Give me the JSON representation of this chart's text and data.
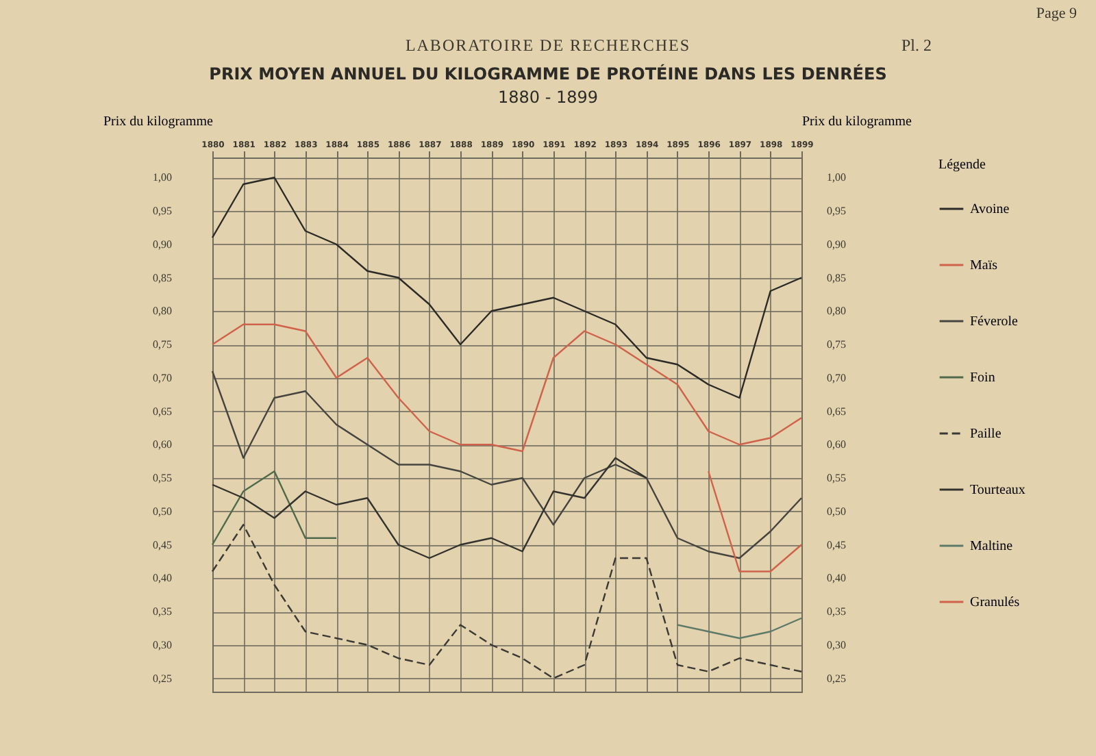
{
  "chart_data": {
    "type": "line",
    "title": "PRIX MOYEN ANNUEL DU KILOGRAMME DE PROTÉINE DANS LES DENRÉES",
    "subtitle": "1880 - 1899",
    "annotations": [
      "Page 9",
      "LABORATOIRE DE RECHERCHES",
      "Pl. 2"
    ],
    "ylabel": "Prix du kilogramme",
    "y2label": "Prix du kilogramme",
    "legend_title": "Légende",
    "categories": [
      "1880",
      "1881",
      "1882",
      "1883",
      "1884",
      "1885",
      "1886",
      "1887",
      "1888",
      "1889",
      "1890",
      "1891",
      "1892",
      "1893",
      "1894",
      "1895",
      "1896",
      "1897",
      "1898",
      "1899"
    ],
    "series": [
      {
        "name": "Avoine",
        "color": "#2b2a26",
        "values": [
          0.91,
          0.99,
          1.0,
          0.92,
          0.9,
          0.86,
          0.85,
          0.81,
          0.75,
          0.8,
          0.81,
          0.82,
          0.8,
          0.78,
          0.73,
          0.72,
          0.69,
          0.67,
          0.83,
          0.85
        ]
      },
      {
        "name": "Maïs",
        "color": "#d0614a",
        "values": [
          0.75,
          0.78,
          0.78,
          0.77,
          0.7,
          0.73,
          0.67,
          0.62,
          0.6,
          0.6,
          0.59,
          0.73,
          0.77,
          0.75,
          0.72,
          0.69,
          0.62,
          0.6,
          0.61,
          0.64
        ]
      },
      {
        "name": "Féverole",
        "color": "#45443f",
        "values": [
          0.71,
          0.58,
          0.67,
          0.68,
          0.63,
          0.6,
          0.57,
          0.57,
          0.56,
          0.54,
          0.55,
          0.48,
          0.55,
          0.57,
          0.55,
          0.46,
          0.44,
          0.43,
          0.47,
          0.52
        ]
      },
      {
        "name": "Foin",
        "color": "#4f6a4a",
        "values": [
          0.45,
          0.53,
          0.56,
          0.46,
          0.46,
          null,
          null,
          null,
          null,
          null,
          null,
          null,
          null,
          null,
          null,
          null,
          null,
          null,
          null,
          null
        ]
      },
      {
        "name": "Paille",
        "color": "#3a3934",
        "line_style": "dashed",
        "values": [
          0.41,
          0.48,
          0.39,
          0.32,
          0.31,
          0.3,
          0.28,
          0.27,
          0.33,
          0.3,
          0.28,
          0.25,
          0.27,
          0.43,
          0.43,
          0.27,
          0.26,
          0.28,
          0.27,
          0.26
        ]
      },
      {
        "name": "Tourteaux",
        "color": "#33322d",
        "values": [
          0.54,
          0.52,
          0.49,
          0.53,
          0.51,
          0.52,
          0.45,
          0.43,
          0.45,
          0.46,
          0.44,
          0.53,
          0.52,
          0.58,
          0.55,
          null,
          null,
          null,
          null,
          null
        ]
      },
      {
        "name": "Maltine",
        "color": "#5d7a68",
        "values": [
          null,
          null,
          null,
          null,
          null,
          null,
          null,
          null,
          null,
          null,
          null,
          null,
          null,
          null,
          null,
          0.33,
          0.32,
          0.31,
          0.32,
          0.34
        ]
      },
      {
        "name": "Granulés",
        "color": "#d0614a",
        "values": [
          null,
          null,
          null,
          null,
          null,
          null,
          null,
          null,
          null,
          null,
          null,
          null,
          null,
          null,
          null,
          null,
          0.56,
          0.41,
          0.41,
          0.45
        ]
      }
    ],
    "ylim": [
      0.23,
      1.03
    ],
    "yticks": [
      {
        "value": 1.0,
        "label": "1,00"
      },
      {
        "value": 0.95,
        "label": "0,95"
      },
      {
        "value": 0.9,
        "label": "0,90"
      },
      {
        "value": 0.85,
        "label": "0,85"
      },
      {
        "value": 0.8,
        "label": "0,80"
      },
      {
        "value": 0.75,
        "label": "0,75"
      },
      {
        "value": 0.7,
        "label": "0,70"
      },
      {
        "value": 0.65,
        "label": "0,65"
      },
      {
        "value": 0.6,
        "label": "0,60"
      },
      {
        "value": 0.55,
        "label": "0,55"
      },
      {
        "value": 0.5,
        "label": "0,50"
      },
      {
        "value": 0.45,
        "label": "0,45"
      },
      {
        "value": 0.4,
        "label": "0,40"
      },
      {
        "value": 0.35,
        "label": "0,35"
      },
      {
        "value": 0.3,
        "label": "0,30"
      },
      {
        "value": 0.25,
        "label": "0,25"
      }
    ],
    "y2lim": [
      0.23,
      1.03
    ],
    "y2ticks": [
      {
        "value": 1.0,
        "label": "1,00"
      },
      {
        "value": 0.95,
        "label": "0,95"
      },
      {
        "value": 0.9,
        "label": "0,90"
      },
      {
        "value": 0.85,
        "label": "0,85"
      },
      {
        "value": 0.8,
        "label": "0,80"
      },
      {
        "value": 0.75,
        "label": "0,75"
      },
      {
        "value": 0.7,
        "label": "0,70"
      },
      {
        "value": 0.65,
        "label": "0,65"
      },
      {
        "value": 0.6,
        "label": "0,60"
      },
      {
        "value": 0.55,
        "label": "0,55"
      },
      {
        "value": 0.5,
        "label": "0,50"
      },
      {
        "value": 0.45,
        "label": "0,45"
      },
      {
        "value": 0.4,
        "label": "0,40"
      },
      {
        "value": 0.35,
        "label": "0,35"
      },
      {
        "value": 0.3,
        "label": "0,30"
      },
      {
        "value": 0.25,
        "label": "0,25"
      }
    ],
    "grid": true,
    "legend": "right",
    "marker": "none",
    "line_style": "solid"
  }
}
